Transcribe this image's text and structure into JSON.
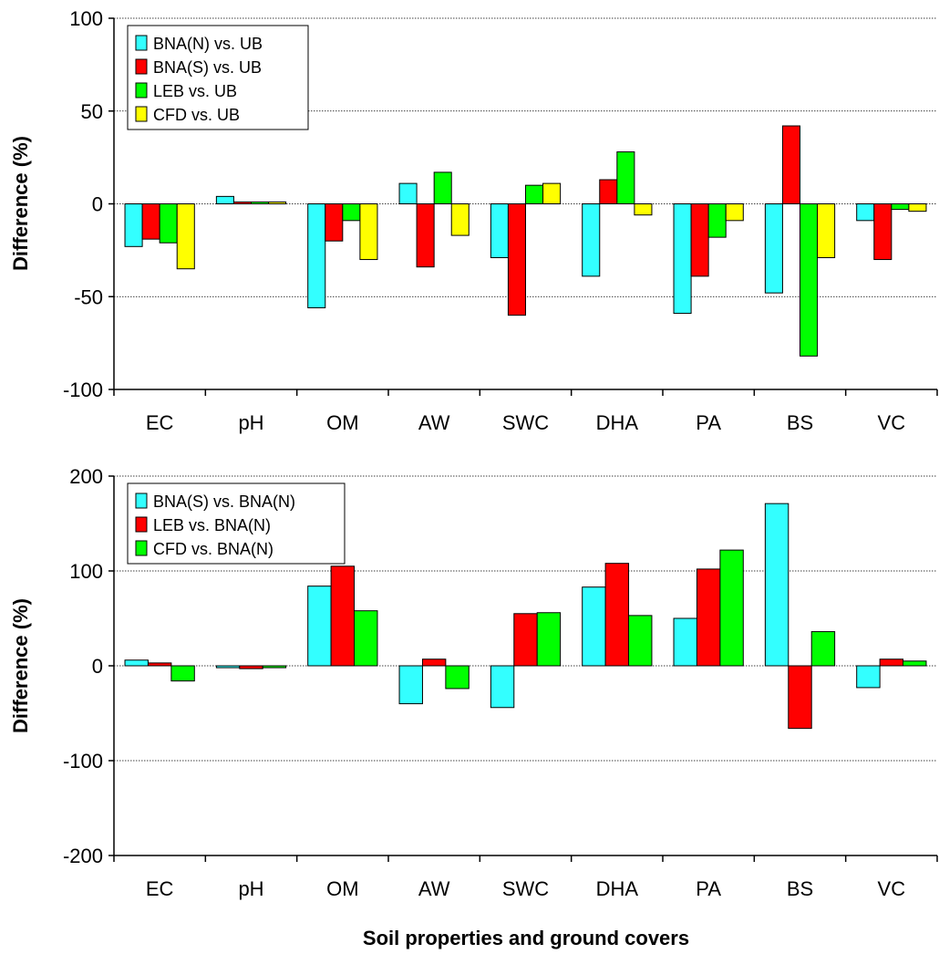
{
  "xlabel": "Soil properties and ground covers",
  "colors": {
    "cyan": "#33FFFF",
    "red": "#FF0000",
    "green": "#00FF00",
    "yellow": "#FFFF00",
    "grid": "#000000",
    "axis": "#000000"
  },
  "chart_data": [
    {
      "type": "bar",
      "title": "",
      "xlabel": "",
      "ylabel": "Difference (%)",
      "ylim": [
        -100,
        100
      ],
      "yticks": [
        -100,
        -50,
        0,
        50,
        100
      ],
      "grid": "horizontal dotted",
      "legend_position": "top-left",
      "categories": [
        "EC",
        "pH",
        "OM",
        "AW",
        "SWC",
        "DHA",
        "PA",
        "BS",
        "VC"
      ],
      "series": [
        {
          "name": "BNA(N) vs. UB",
          "color": "#33FFFF",
          "values": [
            -23,
            4,
            -56,
            11,
            -29,
            -39,
            -59,
            -48,
            -9
          ]
        },
        {
          "name": "BNA(S) vs. UB",
          "color": "#FF0000",
          "values": [
            -19,
            1,
            -20,
            -34,
            -60,
            13,
            -39,
            42,
            -30
          ]
        },
        {
          "name": "LEB vs. UB",
          "color": "#00FF00",
          "values": [
            -21,
            1,
            -9,
            17,
            10,
            28,
            -18,
            -82,
            -3
          ]
        },
        {
          "name": "CFD vs. UB",
          "color": "#FFFF00",
          "values": [
            -35,
            1,
            -30,
            -17,
            11,
            -6,
            -9,
            -29,
            -4
          ]
        }
      ]
    },
    {
      "type": "bar",
      "title": "",
      "xlabel": "Soil properties and ground covers",
      "ylabel": "Difference (%)",
      "ylim": [
        -200,
        200
      ],
      "yticks": [
        -200,
        -100,
        0,
        100,
        200
      ],
      "grid": "horizontal dotted",
      "legend_position": "top-left",
      "categories": [
        "EC",
        "pH",
        "OM",
        "AW",
        "SWC",
        "DHA",
        "PA",
        "BS",
        "VC"
      ],
      "series": [
        {
          "name": "BNA(S) vs. BNA(N)",
          "color": "#33FFFF",
          "values": [
            6,
            -2,
            84,
            -40,
            -44,
            83,
            50,
            171,
            -23
          ]
        },
        {
          "name": "LEB vs. BNA(N)",
          "color": "#FF0000",
          "values": [
            3,
            -3,
            105,
            7,
            55,
            108,
            102,
            -66,
            7
          ]
        },
        {
          "name": "CFD vs. BNA(N)",
          "color": "#00FF00",
          "values": [
            -16,
            -2,
            58,
            -24,
            56,
            53,
            122,
            36,
            5
          ]
        }
      ]
    }
  ]
}
